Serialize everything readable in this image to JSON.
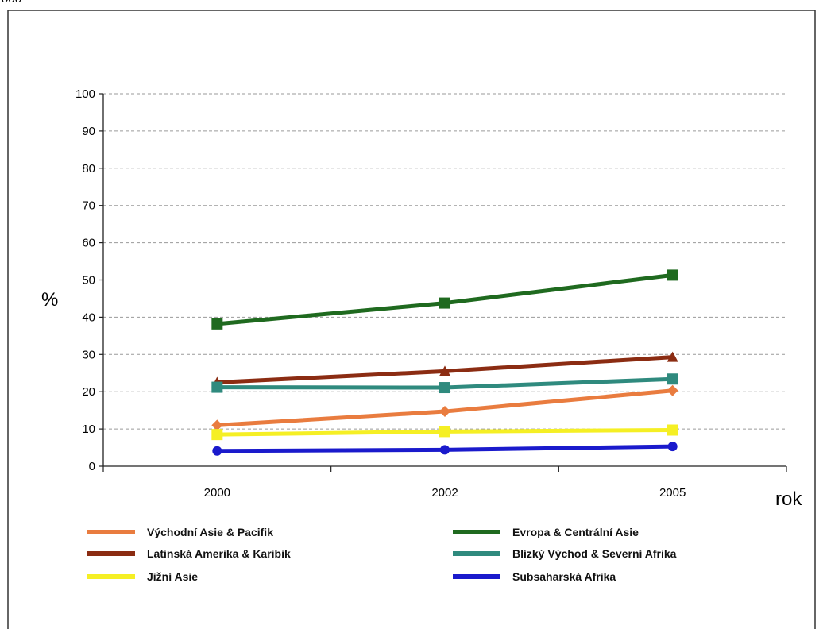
{
  "corner_text": "ooo",
  "chart_data": {
    "type": "line",
    "title": "",
    "xlabel": "rok",
    "ylabel": "%",
    "x": [
      "2000",
      "2002",
      "2005"
    ],
    "ylim": [
      0,
      100
    ],
    "yticks": [
      0,
      10,
      20,
      30,
      40,
      50,
      60,
      70,
      80,
      90,
      100
    ],
    "grid": true,
    "legend_position": "bottom",
    "series": [
      {
        "name": "Východní Asie & Pacifik",
        "values": [
          11,
          14.7,
          20.3
        ],
        "color": "#e97c3f",
        "marker": "diamond"
      },
      {
        "name": "Evropa & Centrální Asie",
        "values": [
          38.2,
          43.8,
          51.3
        ],
        "color": "#1f6a1f",
        "marker": "square"
      },
      {
        "name": "Latinská Amerika & Karibik",
        "values": [
          22.5,
          25.5,
          29.3
        ],
        "color": "#8b2c12",
        "marker": "triangle"
      },
      {
        "name": "Blízký Východ & Severní Afrika",
        "values": [
          21.2,
          21.1,
          23.4
        ],
        "color": "#2f8a7e",
        "marker": "square"
      },
      {
        "name": "Jižní Asie",
        "values": [
          8.5,
          9.3,
          9.7
        ],
        "color": "#f5ef24",
        "marker": "square"
      },
      {
        "name": "Subsaharská Afrika",
        "values": [
          4.1,
          4.4,
          5.3
        ],
        "color": "#1a1acc",
        "marker": "circle"
      }
    ]
  }
}
